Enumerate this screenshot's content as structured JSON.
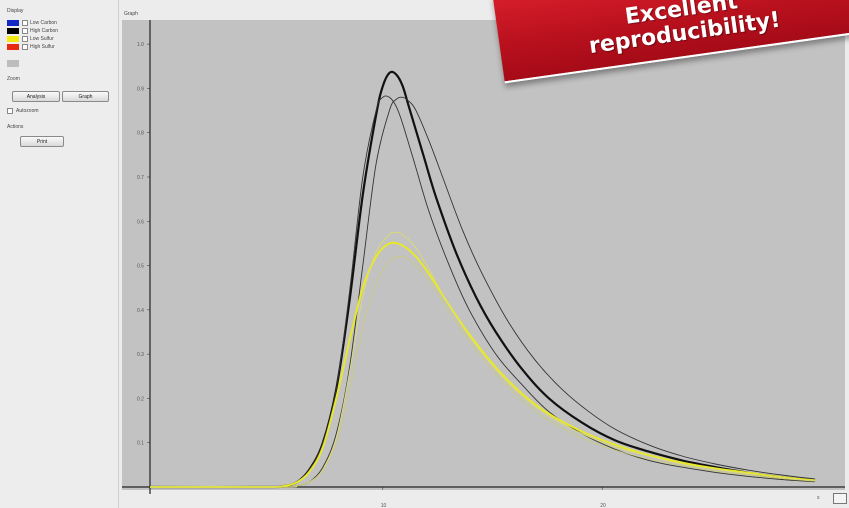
{
  "panel": {
    "display_heading": "Display",
    "legend": [
      {
        "label": "Low Carbon",
        "color": "#1228c8"
      },
      {
        "label": "High Carbon",
        "color": "#000000"
      },
      {
        "label": "Low Sulfur",
        "color": "#f2ea10"
      },
      {
        "label": "High Sulfur",
        "color": "#e82a12"
      }
    ],
    "zoom_heading": "Zoom",
    "zoom_buttons": [
      "Analysis",
      "Graph"
    ],
    "autozoom_label": "Autozoom",
    "actions_heading": "Actions",
    "actions_button": "Print"
  },
  "graph_label": "Graph",
  "y_unit": "%",
  "x_unit": "s",
  "banner_lines": [
    "Excellent",
    "reproducibility!"
  ],
  "chart_data": {
    "type": "line",
    "title": "",
    "xlabel": "",
    "ylabel": "",
    "xlim": [
      0,
      100
    ],
    "ylim": [
      0,
      1.05
    ],
    "y_ticks": [
      0.1,
      0.2,
      0.3,
      0.4,
      0.5,
      0.6,
      0.7,
      0.8,
      0.9,
      1.0
    ],
    "y_tick_labels": [
      "0.1",
      "0.2",
      "0.3",
      "0.4",
      "0.5",
      "0.6",
      "0.7",
      "0.8",
      "0.9",
      "1.0"
    ],
    "x_ticks": [
      35,
      68
    ],
    "x_tick_labels": [
      "10",
      "20"
    ],
    "series": [
      {
        "color": "#111111",
        "width": 2.2,
        "x": [
          0,
          18,
          20,
          22,
          24,
          26,
          28,
          30,
          32,
          34,
          35,
          36,
          37,
          38,
          39,
          41,
          43,
          46,
          49,
          52,
          56,
          60,
          65,
          70,
          75,
          80,
          85,
          90,
          95,
          100
        ],
        "y": [
          0,
          0,
          0.002,
          0.01,
          0.04,
          0.1,
          0.22,
          0.42,
          0.66,
          0.84,
          0.905,
          0.935,
          0.932,
          0.905,
          0.855,
          0.755,
          0.655,
          0.53,
          0.43,
          0.35,
          0.265,
          0.2,
          0.145,
          0.105,
          0.08,
          0.06,
          0.045,
          0.032,
          0.022,
          0.015
        ]
      },
      {
        "color": "#333333",
        "width": 0.9,
        "x": [
          0,
          18,
          20,
          22,
          24,
          26,
          28,
          30,
          32,
          34,
          35,
          36,
          37,
          38,
          40,
          42,
          45,
          48,
          52,
          56,
          60,
          65,
          70,
          75,
          80,
          85,
          90,
          95,
          100
        ],
        "y": [
          0,
          0,
          0.002,
          0.01,
          0.04,
          0.1,
          0.22,
          0.44,
          0.7,
          0.85,
          0.88,
          0.88,
          0.86,
          0.82,
          0.72,
          0.62,
          0.5,
          0.4,
          0.3,
          0.23,
          0.17,
          0.12,
          0.085,
          0.06,
          0.045,
          0.033,
          0.024,
          0.017,
          0.012
        ]
      },
      {
        "color": "#333333",
        "width": 0.9,
        "x": [
          0,
          20,
          22,
          24,
          26,
          28,
          30,
          32,
          34,
          36,
          37,
          38,
          39,
          40,
          42,
          44,
          47,
          50,
          54,
          58,
          62,
          66,
          70,
          75,
          80,
          85,
          90,
          95,
          100
        ],
        "y": [
          0,
          0,
          0.003,
          0.012,
          0.045,
          0.12,
          0.27,
          0.5,
          0.73,
          0.85,
          0.875,
          0.88,
          0.87,
          0.85,
          0.78,
          0.7,
          0.58,
          0.48,
          0.37,
          0.285,
          0.22,
          0.17,
          0.13,
          0.095,
          0.07,
          0.052,
          0.038,
          0.027,
          0.018
        ]
      },
      {
        "color": "#e8e82a",
        "width": 2.0,
        "x": [
          0,
          18,
          20,
          22,
          24,
          26,
          28,
          30,
          32,
          34,
          36,
          38,
          40,
          42,
          45,
          48,
          52,
          56,
          60,
          65,
          70,
          75,
          80,
          85,
          90,
          95,
          100
        ],
        "y": [
          0,
          0,
          0.002,
          0.01,
          0.035,
          0.09,
          0.2,
          0.33,
          0.45,
          0.52,
          0.55,
          0.545,
          0.52,
          0.48,
          0.41,
          0.345,
          0.27,
          0.21,
          0.165,
          0.125,
          0.095,
          0.072,
          0.055,
          0.042,
          0.032,
          0.022,
          0.015
        ]
      },
      {
        "color": "#dede6a",
        "width": 0.8,
        "x": [
          0,
          20,
          22,
          24,
          26,
          28,
          30,
          32,
          34,
          36,
          37,
          38,
          40,
          42,
          45,
          48,
          52,
          56,
          60,
          65,
          70,
          75,
          80,
          85,
          90,
          95,
          100
        ],
        "y": [
          0,
          0,
          0.003,
          0.012,
          0.04,
          0.11,
          0.26,
          0.43,
          0.53,
          0.57,
          0.575,
          0.57,
          0.54,
          0.49,
          0.41,
          0.34,
          0.265,
          0.205,
          0.16,
          0.12,
          0.09,
          0.07,
          0.052,
          0.04,
          0.03,
          0.021,
          0.014
        ]
      },
      {
        "color": "#cccc70",
        "width": 0.7,
        "x": [
          0,
          20,
          22,
          24,
          26,
          28,
          30,
          32,
          34,
          36,
          38,
          40,
          42,
          45,
          48,
          52,
          56,
          60,
          65,
          70,
          75,
          80,
          85,
          90,
          95,
          100
        ],
        "y": [
          0,
          0,
          0.003,
          0.011,
          0.038,
          0.1,
          0.22,
          0.36,
          0.46,
          0.51,
          0.52,
          0.5,
          0.465,
          0.395,
          0.33,
          0.255,
          0.195,
          0.15,
          0.11,
          0.083,
          0.063,
          0.048,
          0.036,
          0.027,
          0.019,
          0.013
        ]
      }
    ]
  }
}
